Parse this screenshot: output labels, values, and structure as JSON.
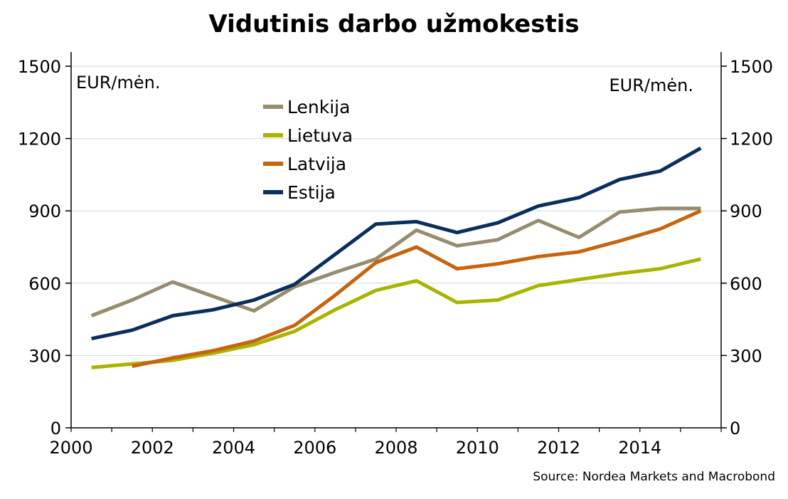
{
  "chart_data": {
    "type": "line",
    "title": "Vidutinis darbo užmokestis",
    "y_unit_left": "EUR/mėn.",
    "y_unit_right": "EUR/mėn.",
    "ylim": [
      0,
      1500
    ],
    "yticks": [
      "0",
      "300",
      "600",
      "900",
      "1200",
      "1500"
    ],
    "xlim": [
      2000,
      2016
    ],
    "xticks": [
      "2000",
      "2002",
      "2004",
      "2006",
      "2008",
      "2010",
      "2012",
      "2014"
    ],
    "grid": "horizontal",
    "legend_position": "top-center",
    "series": [
      {
        "name": "Lenkija",
        "color": "#968c6e",
        "x": [
          2000.5,
          2001.5,
          2002.5,
          2003.5,
          2004.5,
          2005.5,
          2006.5,
          2007.5,
          2008.5,
          2009.5,
          2010.5,
          2011.5,
          2012.5,
          2013.5,
          2014.5,
          2015.5
        ],
        "values": [
          465,
          530,
          605,
          545,
          485,
          585,
          645,
          700,
          820,
          755,
          780,
          860,
          790,
          895,
          910,
          910
        ]
      },
      {
        "name": "Lietuva",
        "color": "#a8b400",
        "x": [
          2000.5,
          2001.5,
          2002.5,
          2003.5,
          2004.5,
          2005.5,
          2006.5,
          2007.5,
          2008.5,
          2009.5,
          2010.5,
          2011.5,
          2012.5,
          2013.5,
          2014.5,
          2015.5
        ],
        "values": [
          250,
          265,
          280,
          310,
          345,
          400,
          490,
          570,
          610,
          520,
          530,
          590,
          615,
          640,
          660,
          700
        ]
      },
      {
        "name": "Latvija",
        "color": "#c8630e",
        "x": [
          2001.5,
          2002.5,
          2003.5,
          2004.5,
          2005.5,
          2006.5,
          2007.5,
          2008.5,
          2009.5,
          2010.5,
          2011.5,
          2012.5,
          2013.5,
          2014.5,
          2015.5
        ],
        "values": [
          255,
          290,
          320,
          360,
          425,
          550,
          685,
          750,
          660,
          680,
          710,
          730,
          775,
          825,
          900
        ]
      },
      {
        "name": "Estija",
        "color": "#0a2f5c",
        "x": [
          2000.5,
          2001.5,
          2002.5,
          2003.5,
          2004.5,
          2005.5,
          2006.5,
          2007.5,
          2008.5,
          2009.5,
          2010.5,
          2011.5,
          2012.5,
          2013.5,
          2014.5,
          2015.5
        ],
        "values": [
          370,
          405,
          465,
          490,
          530,
          595,
          720,
          845,
          855,
          810,
          850,
          920,
          955,
          1030,
          1065,
          1160
        ]
      }
    ]
  },
  "source": "Source: Nordea Markets and Macrobond"
}
